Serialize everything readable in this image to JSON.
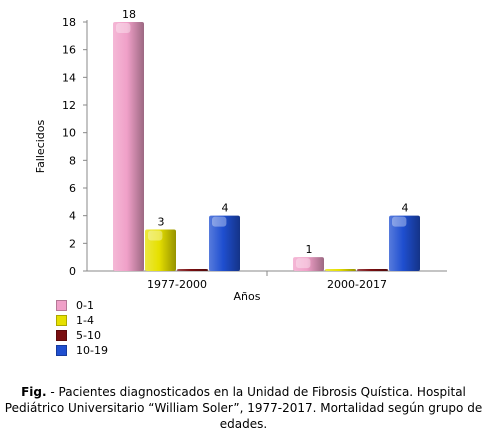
{
  "chart_data": {
    "type": "bar",
    "categories": [
      "1977-2000",
      "2000-2017"
    ],
    "series": [
      {
        "name": "0-1",
        "values": [
          18,
          1
        ],
        "color": "#f0a0c8"
      },
      {
        "name": "1-4",
        "values": [
          3,
          0
        ],
        "color": "#e6e000"
      },
      {
        "name": "5-10",
        "values": [
          0,
          0
        ],
        "color": "#7a0e10"
      },
      {
        "name": "10-19",
        "values": [
          4,
          4
        ],
        "color": "#1f4fd0"
      }
    ],
    "data_labels": [
      [
        "18",
        "1"
      ],
      [
        "3",
        ""
      ],
      [
        "",
        ""
      ],
      [
        "4",
        "4"
      ]
    ],
    "xlabel": "Años",
    "ylabel": "Fallecidos",
    "ylim": [
      0,
      18
    ],
    "yticks": [
      0,
      2,
      4,
      6,
      8,
      10,
      12,
      14,
      16,
      18
    ],
    "grid": false,
    "legend_position": "bottom-left"
  },
  "caption": {
    "prefix": "Fig.",
    "text": " - Pacientes diagnosticados en la Unidad de Fibrosis Quística. Hospital Pediátrico Universitario “William Soler”, 1977-2017. Mortalidad según grupo de edades."
  }
}
